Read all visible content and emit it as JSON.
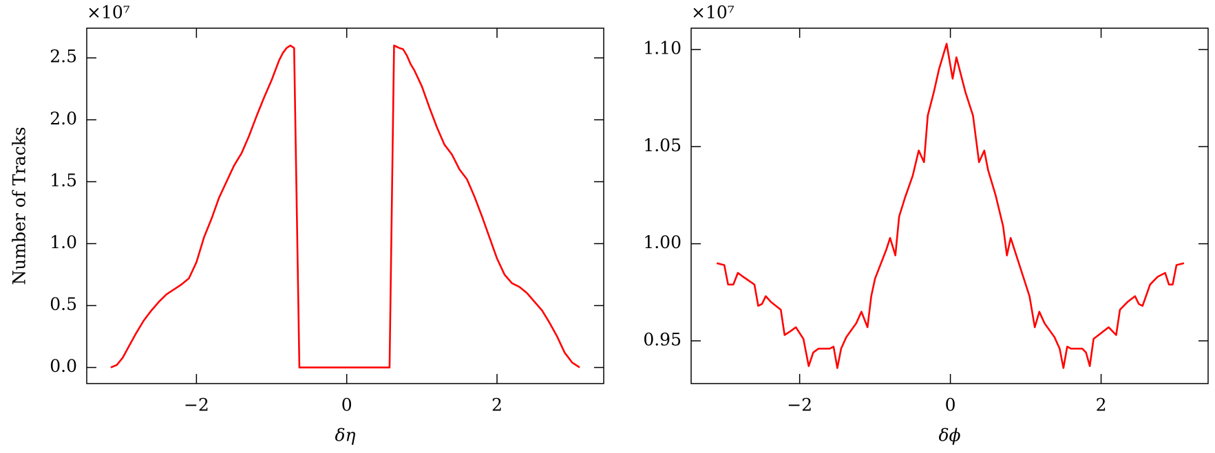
{
  "chart_data": [
    {
      "type": "line",
      "offset_label": "×10⁷",
      "x_label": "δη",
      "y_label": "Number of Tracks",
      "color": "#ff0000",
      "xlim": [
        -3.46,
        3.42
      ],
      "ylim": [
        -0.13,
        2.74
      ],
      "xticks": [
        {
          "value": -2,
          "label": "−2"
        },
        0,
        2
      ],
      "yticks": [
        {
          "value": 0,
          "label": "0.0"
        },
        0.5,
        {
          "value": 1,
          "label": "1.0"
        },
        1.5,
        {
          "value": 2,
          "label": "2.0"
        },
        2.5
      ],
      "x": [
        -3.14,
        -3.06,
        -2.98,
        -2.9,
        -2.8,
        -2.7,
        -2.6,
        -2.5,
        -2.4,
        -2.3,
        -2.2,
        -2.1,
        -2.0,
        -1.9,
        -1.8,
        -1.7,
        -1.6,
        -1.5,
        -1.4,
        -1.3,
        -1.2,
        -1.1,
        -1.0,
        -0.95,
        -0.9,
        -0.85,
        -0.8,
        -0.75,
        -0.7,
        -0.63,
        0.57,
        0.63,
        0.7,
        0.75,
        0.8,
        0.85,
        0.9,
        1.0,
        1.1,
        1.2,
        1.3,
        1.4,
        1.5,
        1.6,
        1.7,
        1.8,
        1.9,
        2.0,
        2.1,
        2.2,
        2.3,
        2.4,
        2.5,
        2.6,
        2.7,
        2.8,
        2.9,
        3.0,
        3.1
      ],
      "values": [
        0,
        0.02,
        0.08,
        0.17,
        0.28,
        0.38,
        0.46,
        0.53,
        0.59,
        0.63,
        0.67,
        0.72,
        0.85,
        1.05,
        1.2,
        1.37,
        1.5,
        1.63,
        1.73,
        1.87,
        2.03,
        2.18,
        2.32,
        2.4,
        2.48,
        2.54,
        2.58,
        2.6,
        2.58,
        0,
        0,
        2.6,
        2.58,
        2.57,
        2.52,
        2.45,
        2.4,
        2.27,
        2.1,
        1.94,
        1.8,
        1.72,
        1.6,
        1.52,
        1.38,
        1.22,
        1.05,
        0.88,
        0.75,
        0.68,
        0.65,
        0.6,
        0.53,
        0.46,
        0.36,
        0.25,
        0.12,
        0.04,
        0
      ]
    },
    {
      "type": "line",
      "offset_label": "×10⁷",
      "x_label": "δϕ",
      "color": "#ff0000",
      "xlim": [
        -3.44,
        3.42
      ],
      "ylim": [
        0.928,
        1.111
      ],
      "xticks": [
        {
          "value": -2,
          "label": "−2"
        },
        0,
        2
      ],
      "yticks": [
        0.95,
        {
          "value": 1,
          "label": "1.00"
        },
        1.05,
        {
          "value": 1.1,
          "label": "1.10"
        }
      ],
      "x": [
        -3.1,
        -3.0,
        -2.95,
        -2.88,
        -2.82,
        -2.75,
        -2.6,
        -2.55,
        -2.5,
        -2.45,
        -2.38,
        -2.25,
        -2.2,
        -2.12,
        -2.05,
        -1.95,
        -1.88,
        -1.82,
        -1.75,
        -1.68,
        -1.6,
        -1.55,
        -1.5,
        -1.45,
        -1.38,
        -1.25,
        -1.18,
        -1.1,
        -1.05,
        -1.0,
        -0.92,
        -0.85,
        -0.8,
        -0.73,
        -0.68,
        -0.6,
        -0.5,
        -0.42,
        -0.35,
        -0.3,
        -0.22,
        -0.15,
        -0.05,
        0.03,
        0.08,
        0.2,
        0.3,
        0.38,
        0.45,
        0.5,
        0.6,
        0.7,
        0.75,
        0.8,
        0.85,
        0.95,
        1.05,
        1.12,
        1.18,
        1.25,
        1.38,
        1.45,
        1.5,
        1.55,
        1.6,
        1.7,
        1.75,
        1.8,
        1.85,
        1.9,
        2.0,
        2.1,
        2.2,
        2.25,
        2.35,
        2.45,
        2.5,
        2.55,
        2.65,
        2.75,
        2.85,
        2.9,
        2.95,
        3.0,
        3.1
      ],
      "values": [
        0.99,
        0.989,
        0.979,
        0.979,
        0.985,
        0.983,
        0.979,
        0.968,
        0.969,
        0.973,
        0.97,
        0.966,
        0.953,
        0.955,
        0.957,
        0.951,
        0.937,
        0.944,
        0.946,
        0.946,
        0.946,
        0.947,
        0.936,
        0.946,
        0.952,
        0.959,
        0.965,
        0.957,
        0.973,
        0.982,
        0.99,
        0.997,
        1.003,
        0.994,
        1.014,
        1.024,
        1.035,
        1.048,
        1.042,
        1.066,
        1.078,
        1.09,
        1.103,
        1.085,
        1.096,
        1.078,
        1.066,
        1.042,
        1.048,
        1.038,
        1.025,
        1.009,
        0.994,
        1.003,
        0.997,
        0.985,
        0.973,
        0.957,
        0.965,
        0.959,
        0.952,
        0.946,
        0.936,
        0.947,
        0.946,
        0.946,
        0.946,
        0.944,
        0.937,
        0.951,
        0.954,
        0.957,
        0.953,
        0.966,
        0.97,
        0.973,
        0.969,
        0.968,
        0.979,
        0.983,
        0.985,
        0.979,
        0.979,
        0.989,
        0.99
      ]
    }
  ]
}
